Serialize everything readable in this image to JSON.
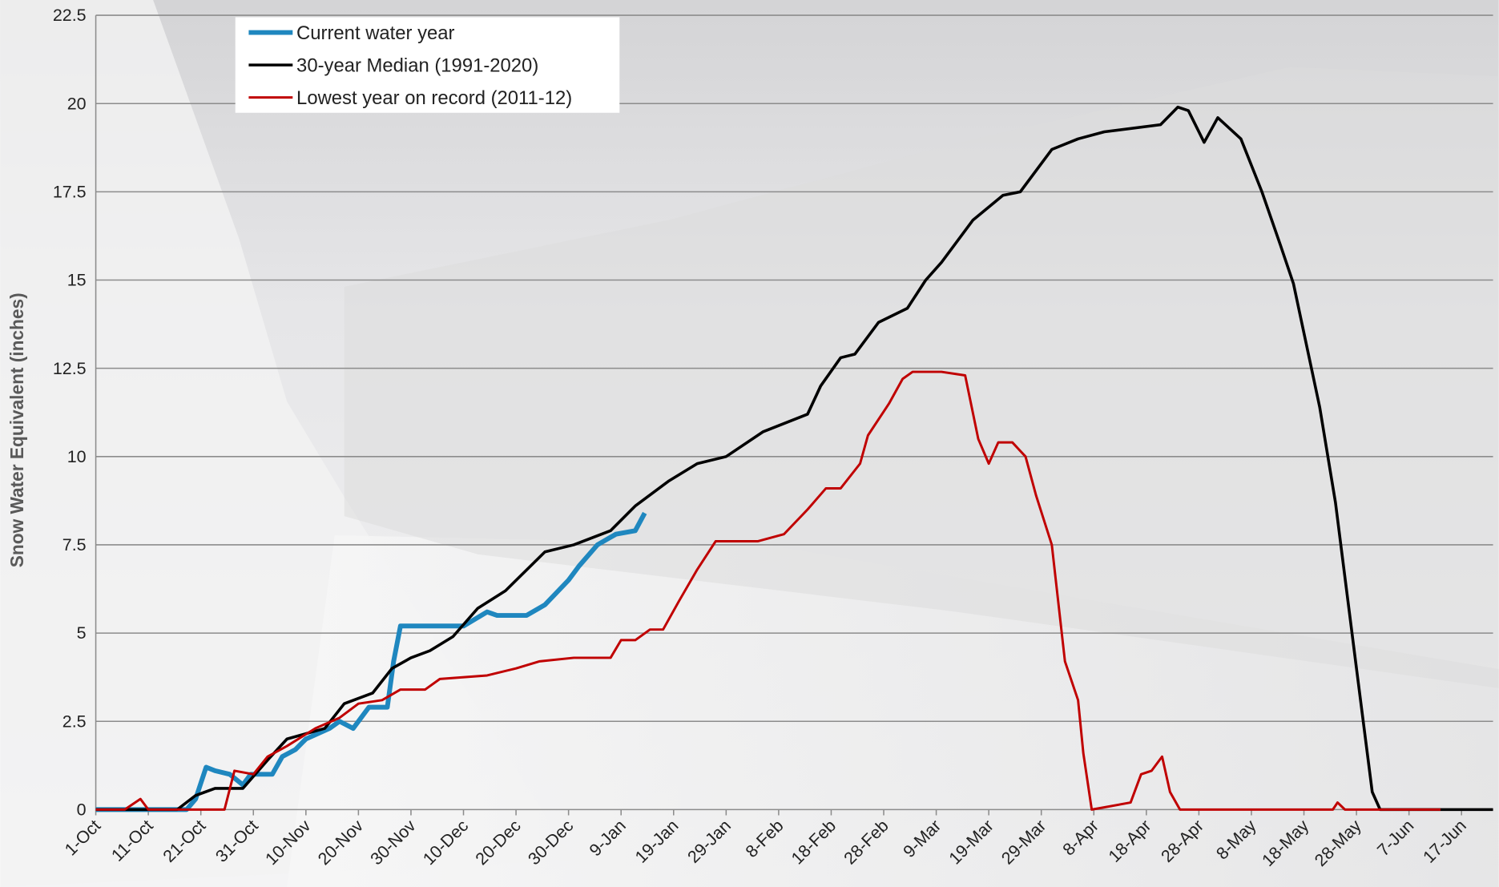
{
  "chart_data": {
    "type": "line",
    "y_label": "Snow Water Equivalent (inches)",
    "xlim": [
      0,
      266
    ],
    "ylim": [
      0,
      22.5
    ],
    "yticks": [
      0,
      2.5,
      5,
      7.5,
      10,
      12.5,
      15,
      17.5,
      20,
      22.5
    ],
    "xticks": [
      {
        "value": 0,
        "label": "1-Oct"
      },
      {
        "value": 10,
        "label": "11-Oct"
      },
      {
        "value": 20,
        "label": "21-Oct"
      },
      {
        "value": 30,
        "label": "31-Oct"
      },
      {
        "value": 40,
        "label": "10-Nov"
      },
      {
        "value": 50,
        "label": "20-Nov"
      },
      {
        "value": 60,
        "label": "30-Nov"
      },
      {
        "value": 70,
        "label": "10-Dec"
      },
      {
        "value": 80,
        "label": "20-Dec"
      },
      {
        "value": 90,
        "label": "30-Dec"
      },
      {
        "value": 100,
        "label": "9-Jan"
      },
      {
        "value": 110,
        "label": "19-Jan"
      },
      {
        "value": 120,
        "label": "29-Jan"
      },
      {
        "value": 130,
        "label": "8-Feb"
      },
      {
        "value": 140,
        "label": "18-Feb"
      },
      {
        "value": 150,
        "label": "28-Feb"
      },
      {
        "value": 160,
        "label": "9-Mar"
      },
      {
        "value": 170,
        "label": "19-Mar"
      },
      {
        "value": 180,
        "label": "29-Mar"
      },
      {
        "value": 190,
        "label": "8-Apr"
      },
      {
        "value": 200,
        "label": "18-Apr"
      },
      {
        "value": 210,
        "label": "28-Apr"
      },
      {
        "value": 220,
        "label": "8-May"
      },
      {
        "value": 230,
        "label": "18-May"
      },
      {
        "value": 240,
        "label": "28-May"
      },
      {
        "value": 250,
        "label": "7-Jun"
      },
      {
        "value": 260,
        "label": "17-Jun"
      }
    ],
    "grid": true,
    "legend": "top-left",
    "series": [
      {
        "name": "Current water year",
        "color": "#1f87bf",
        "width": 5,
        "x": [
          0,
          17.3,
          19,
          21,
          22.7,
          25.5,
          28,
          29.5,
          33.6,
          35.5,
          38,
          40,
          44.5,
          46.4,
          49,
          52,
          55.5,
          56.7,
          58,
          70,
          74.5,
          76.4,
          82,
          85.5,
          90,
          92,
          95.5,
          99,
          102.7,
          104.5
        ],
        "values": [
          0,
          0,
          0.3,
          1.2,
          1.1,
          1.0,
          0.7,
          1.0,
          1.0,
          1.5,
          1.7,
          2.0,
          2.3,
          2.5,
          2.3,
          2.9,
          2.9,
          4.2,
          5.2,
          5.2,
          5.6,
          5.5,
          5.5,
          5.8,
          6.5,
          6.9,
          7.5,
          7.8,
          7.9,
          8.4
        ]
      },
      {
        "name": "30-year Median (1991-2020)",
        "color": "#000000",
        "width": 3,
        "x": [
          0,
          15.5,
          19,
          22.7,
          28,
          32.7,
          36.4,
          43.6,
          47.3,
          52.7,
          56.4,
          60,
          63.6,
          68,
          72.7,
          78,
          85.5,
          91,
          98,
          102.7,
          109,
          114.5,
          120,
          127,
          135.5,
          138,
          141.8,
          144.5,
          149,
          154.5,
          158,
          161,
          167,
          172.7,
          176,
          182,
          187,
          192,
          202.7,
          206,
          208,
          211,
          213.6,
          218,
          222,
          225.5,
          228,
          233,
          236,
          240,
          243,
          244.5,
          266
        ],
        "values": [
          0,
          0,
          0.4,
          0.6,
          0.6,
          1.4,
          2.0,
          2.3,
          3.0,
          3.3,
          4.0,
          4.3,
          4.5,
          4.9,
          5.7,
          6.2,
          7.3,
          7.5,
          7.9,
          8.6,
          9.3,
          9.8,
          10.0,
          10.7,
          11.2,
          12.0,
          12.8,
          12.9,
          13.8,
          14.2,
          15.0,
          15.5,
          16.7,
          17.4,
          17.5,
          18.7,
          19.0,
          19.2,
          19.4,
          19.9,
          19.8,
          18.9,
          19.6,
          19.0,
          17.5,
          16.0,
          14.9,
          11.4,
          8.7,
          4.0,
          0.5,
          0,
          0
        ]
      },
      {
        "name": "Lowest year on record (2011-12)",
        "color": "#c00000",
        "width": 2.5,
        "x": [
          0,
          5.5,
          8.5,
          10,
          24.5,
          26.4,
          30,
          32.7,
          36.4,
          41.8,
          46.4,
          50,
          54.5,
          58,
          62.7,
          65.5,
          74.5,
          80,
          84.5,
          91,
          98,
          100,
          102.7,
          105.5,
          108,
          111,
          114.5,
          118,
          126,
          131,
          135.5,
          139,
          141.8,
          145.5,
          147,
          151,
          153.6,
          155.5,
          161,
          165.5,
          168,
          170,
          171.8,
          174.5,
          177,
          179,
          182,
          184.5,
          187,
          188,
          189.6,
          197,
          199,
          201,
          203,
          204.5,
          206.4,
          235.5,
          236.4,
          237.8,
          256
        ],
        "values": [
          0,
          0,
          0.3,
          0,
          0,
          1.1,
          1.0,
          1.5,
          1.8,
          2.3,
          2.6,
          3.0,
          3.1,
          3.4,
          3.4,
          3.7,
          3.8,
          4.0,
          4.2,
          4.3,
          4.3,
          4.8,
          4.8,
          5.1,
          5.1,
          5.9,
          6.8,
          7.6,
          7.6,
          7.8,
          8.5,
          9.1,
          9.1,
          9.8,
          10.6,
          11.5,
          12.2,
          12.4,
          12.4,
          12.3,
          10.5,
          9.8,
          10.4,
          10.4,
          10.0,
          8.9,
          7.5,
          4.2,
          3.1,
          1.6,
          0,
          0.2,
          1.0,
          1.1,
          1.5,
          0.5,
          0,
          0,
          0.2,
          0,
          0
        ]
      }
    ]
  }
}
